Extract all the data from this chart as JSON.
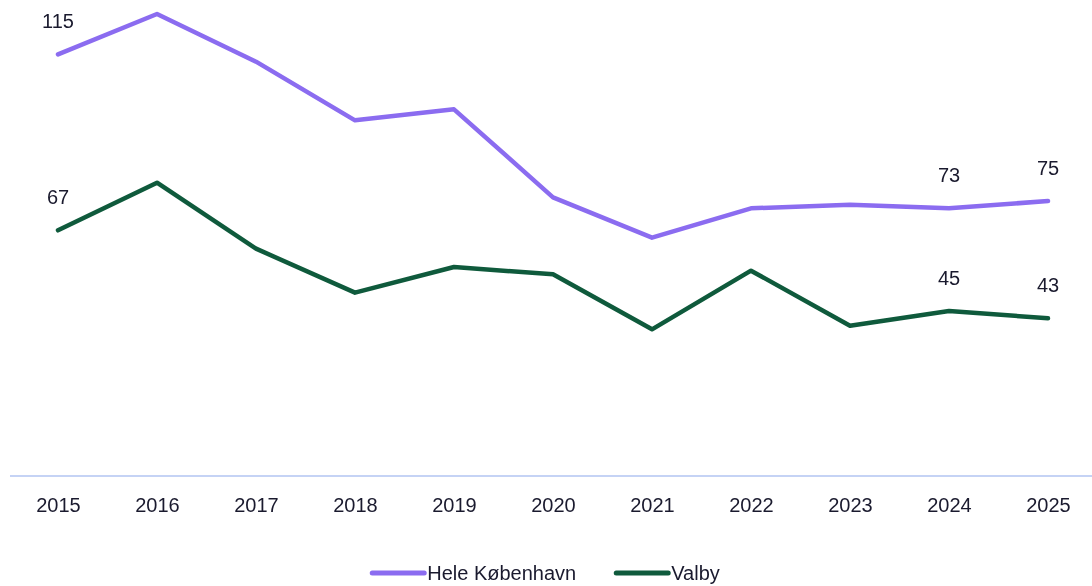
{
  "chart_data": {
    "type": "line",
    "categories": [
      "2015",
      "2016",
      "2017",
      "2018",
      "2019",
      "2020",
      "2021",
      "2022",
      "2023",
      "2024",
      "2025"
    ],
    "series": [
      {
        "name": "Hele København",
        "color": "#8b6cf0",
        "values": [
          115,
          126,
          113,
          97,
          100,
          76,
          65,
          73,
          74,
          73,
          75
        ],
        "value_labels": [
          "115",
          null,
          null,
          null,
          null,
          null,
          null,
          null,
          null,
          "73",
          "75"
        ]
      },
      {
        "name": "Valby",
        "color": "#0f5a3c",
        "values": [
          67,
          80,
          62,
          50,
          57,
          55,
          40,
          56,
          41,
          45,
          43
        ],
        "value_labels": [
          "67",
          null,
          null,
          null,
          null,
          null,
          null,
          null,
          null,
          "45",
          "43"
        ]
      }
    ],
    "tick_labels": "x",
    "legend": "bottom",
    "marker": "none",
    "line_style": "solid"
  }
}
